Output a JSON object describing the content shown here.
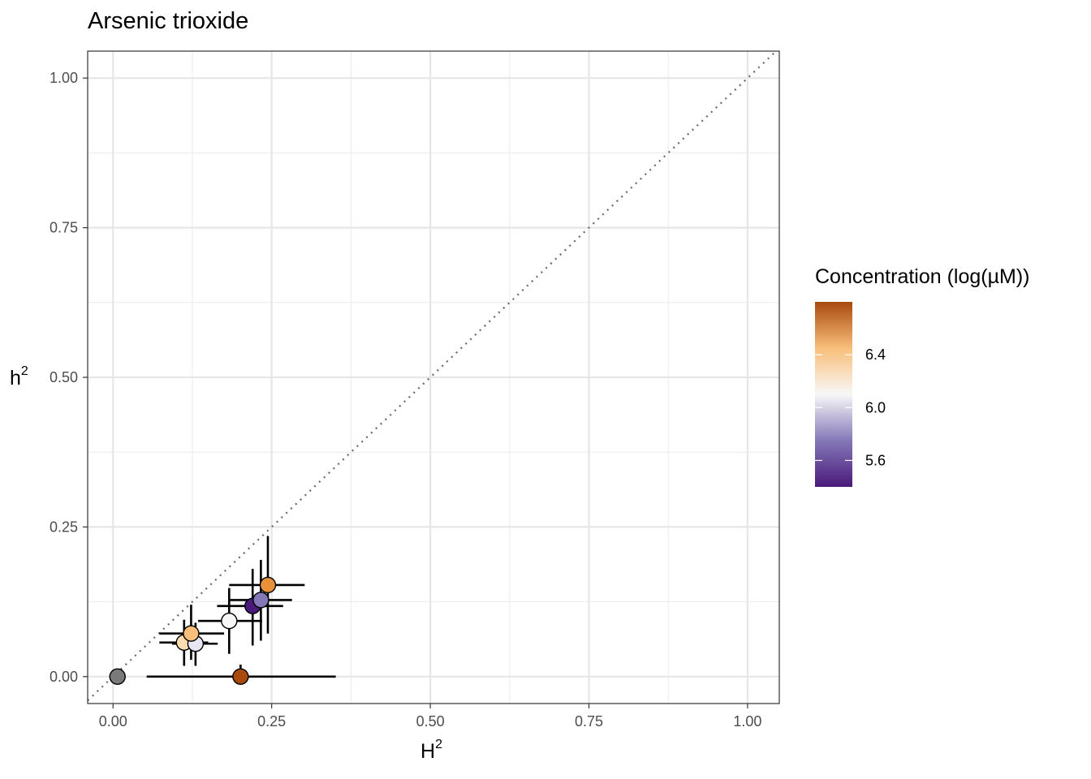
{
  "chart_data": {
    "type": "scatter",
    "title": "Arsenic trioxide",
    "xlabel": "H",
    "xlabel_sup": "2",
    "ylabel": "h",
    "ylabel_sup": "2",
    "xlim": [
      -0.04,
      1.05
    ],
    "ylim": [
      -0.045,
      1.045
    ],
    "x_ticks": [
      0.0,
      0.25,
      0.5,
      0.75,
      1.0
    ],
    "x_tick_labels": [
      "0.00",
      "0.25",
      "0.50",
      "0.75",
      "1.00"
    ],
    "y_ticks": [
      0.0,
      0.25,
      0.5,
      0.75,
      1.0
    ],
    "y_tick_labels": [
      "0.00",
      "0.25",
      "0.50",
      "0.75",
      "1.00"
    ],
    "grid": true,
    "reference_line": "y = x (dotted)",
    "legend": {
      "title": "Concentration (log(µM))",
      "placement": "right",
      "type": "colorbar",
      "range": [
        5.4,
        6.8
      ],
      "ticks": [
        5.6,
        6.0,
        6.4
      ],
      "tick_labels": [
        "5.6",
        "6.0",
        "6.4"
      ],
      "colors": [
        "#4a1a7a",
        "#8478b8",
        "#f7f7f7",
        "#f9be7a",
        "#a84a0e"
      ]
    },
    "points": [
      {
        "x": 0.007,
        "y": 0.0,
        "xmin": 0.007,
        "xmax": 0.007,
        "ymin": 0.0,
        "ymax": 0.0,
        "color": "#7a7a7a"
      },
      {
        "x": 0.201,
        "y": 0.0,
        "xmin": 0.053,
        "xmax": 0.351,
        "ymin": -0.01,
        "ymax": 0.02,
        "color": "#a84a0e"
      },
      {
        "x": 0.112,
        "y": 0.057,
        "xmin": 0.073,
        "xmax": 0.15,
        "ymin": 0.018,
        "ymax": 0.095,
        "color": "#fcdcb0"
      },
      {
        "x": 0.13,
        "y": 0.055,
        "xmin": 0.093,
        "xmax": 0.165,
        "ymin": 0.018,
        "ymax": 0.09,
        "color": "#e8e6f2"
      },
      {
        "x": 0.123,
        "y": 0.072,
        "xmin": 0.073,
        "xmax": 0.175,
        "ymin": 0.028,
        "ymax": 0.12,
        "color": "#f9be7a"
      },
      {
        "x": 0.183,
        "y": 0.093,
        "xmin": 0.134,
        "xmax": 0.235,
        "ymin": 0.038,
        "ymax": 0.148,
        "color": "#f7f7f7"
      },
      {
        "x": 0.22,
        "y": 0.118,
        "xmin": 0.164,
        "xmax": 0.268,
        "ymin": 0.052,
        "ymax": 0.18,
        "color": "#4a1a7a"
      },
      {
        "x": 0.233,
        "y": 0.128,
        "xmin": 0.183,
        "xmax": 0.282,
        "ymin": 0.06,
        "ymax": 0.195,
        "color": "#8478b8"
      },
      {
        "x": 0.244,
        "y": 0.153,
        "xmin": 0.183,
        "xmax": 0.302,
        "ymin": 0.072,
        "ymax": 0.235,
        "color": "#e8913a"
      }
    ]
  }
}
